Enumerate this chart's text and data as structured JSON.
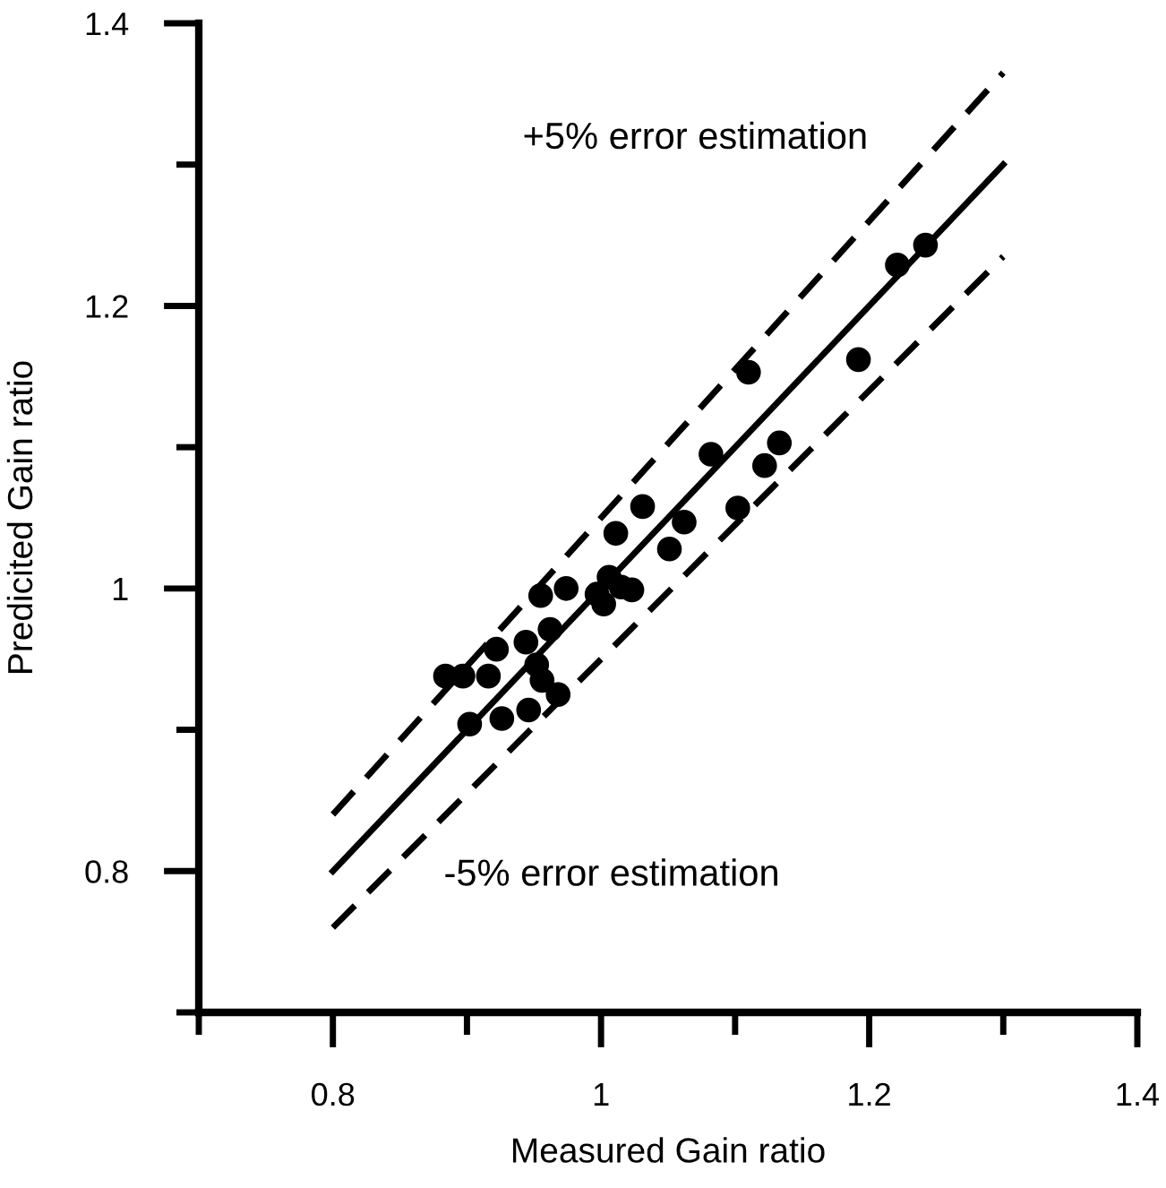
{
  "chart_data": {
    "type": "scatter",
    "xlabel": "Measured Gain ratio",
    "ylabel": "Predicited Gain ratio",
    "xlim": [
      0.7,
      1.4
    ],
    "ylim": [
      0.7,
      1.4
    ],
    "xticks": [
      {
        "value": 0.7,
        "label": null
      },
      0.8,
      {
        "value": 0.9,
        "label": null
      },
      {
        "value": 1,
        "label": "1"
      },
      {
        "value": 1.1,
        "label": null
      },
      1.2,
      {
        "value": 1.3,
        "label": null
      },
      1.4
    ],
    "yticks": [
      {
        "value": 0.7,
        "label": null
      },
      0.8,
      {
        "value": 0.9,
        "label": null
      },
      {
        "value": 1,
        "label": "1"
      },
      {
        "value": 1.1,
        "label": null
      },
      1.2,
      {
        "value": 1.3,
        "label": null
      },
      1.4
    ],
    "grid": false,
    "legend": false,
    "marker": "circle",
    "series": [
      {
        "color": "#000000",
        "x": [
          1.221,
          1.242,
          1.11,
          1.192,
          1.082,
          1.133,
          1.122,
          1.102,
          1.031,
          1.011,
          1.062,
          1.051,
          1.006,
          1.015,
          0.997,
          1.002,
          1.023,
          0.974,
          0.955,
          0.962,
          0.944,
          0.922,
          0.952,
          0.956,
          0.916,
          0.884,
          0.897,
          0.902,
          0.926,
          0.946,
          0.968
        ],
        "values": [
          1.229,
          1.243,
          1.153,
          1.162,
          1.095,
          1.103,
          1.087,
          1.057,
          1.058,
          1.039,
          1.047,
          1.028,
          1.008,
          1.001,
          0.996,
          0.989,
          0.999,
          1.0,
          0.995,
          0.971,
          0.962,
          0.957,
          0.946,
          0.935,
          0.938,
          0.938,
          0.938,
          0.904,
          0.908,
          0.914,
          0.925
        ]
      },
      {
        "type": "line",
        "color": "#000000",
        "line_style": "solid",
        "marker": "none",
        "x": [
          0.8,
          1.3
        ],
        "values": [
          0.8,
          1.3
        ]
      },
      {
        "type": "line",
        "color": "#000000",
        "line_style": "dashed",
        "marker": "none",
        "x": [
          0.8,
          1.3
        ],
        "values": [
          0.84,
          1.365
        ]
      },
      {
        "type": "line",
        "color": "#000000",
        "line_style": "dashed",
        "marker": "none",
        "x": [
          0.8,
          1.3
        ],
        "values": [
          0.76,
          1.235
        ]
      }
    ],
    "annotations": [
      "+5% error estimation",
      "-5% error estimation"
    ]
  }
}
